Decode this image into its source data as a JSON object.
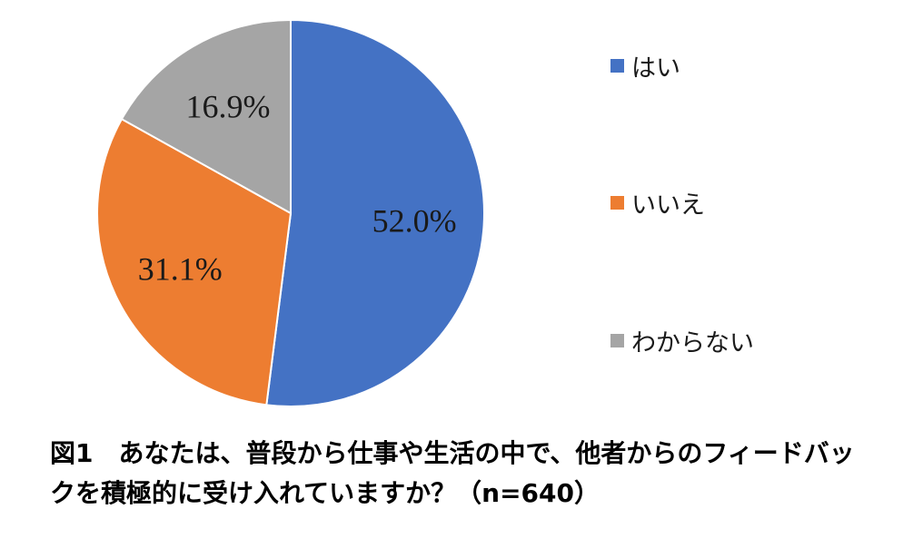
{
  "chart_data": {
    "type": "pie",
    "categories": [
      "はい",
      "いいえ",
      "わからない"
    ],
    "values": [
      52.0,
      31.1,
      16.9
    ],
    "data_labels": [
      "52.0%",
      "31.1%",
      "16.9%"
    ],
    "colors": [
      "#4472C4",
      "#ED7D31",
      "#A5A5A5"
    ],
    "legend_position": "right",
    "title": "図1　あなたは、普段から仕事や生活の中で、他者からのフィードバックを積極的に受け入れていますか？（n=640）"
  }
}
